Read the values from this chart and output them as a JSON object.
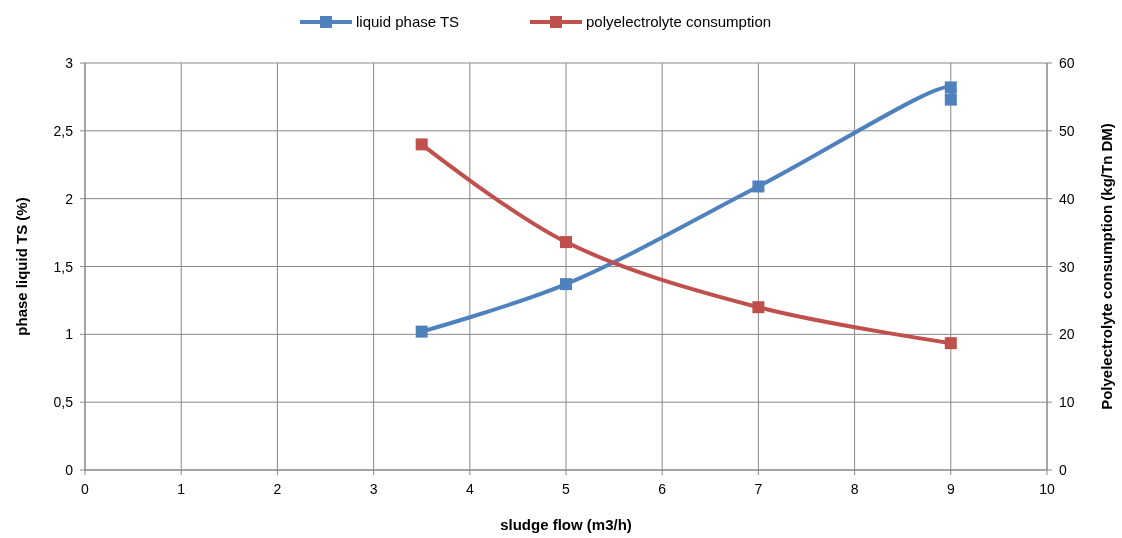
{
  "chart_data": {
    "type": "line",
    "xlabel": "sludge flow (m3/h)",
    "ylabel": "phase liquid TS (%)",
    "y2label": "Polyelectrolyte consumption (kg/Tn DM)",
    "series": [
      {
        "name": "liquid phase TS",
        "color": "#4f81bd",
        "x": [
          3.5,
          5,
          7,
          9,
          9
        ],
        "values": [
          1.02,
          1.37,
          2.09,
          2.82,
          2.73
        ]
      },
      {
        "name": "polyelectrolyte consumption",
        "color": "#c0504d",
        "x": [
          3.5,
          5,
          7,
          9
        ],
        "values": [
          48,
          33.6,
          24,
          18.7
        ],
        "axis": "y2"
      }
    ],
    "xlim": [
      0,
      10
    ],
    "xticks": [
      0,
      1,
      2,
      3,
      4,
      5,
      6,
      7,
      8,
      9,
      10
    ],
    "ylim": [
      0,
      3
    ],
    "yticks": [
      0,
      {
        "value": 0.5,
        "label": "0,5"
      },
      1,
      {
        "value": 1.5,
        "label": "1,5"
      },
      2,
      {
        "value": 2.5,
        "label": "2,5"
      },
      3
    ],
    "y2lim": [
      0,
      60
    ],
    "y2ticks": [
      0,
      10,
      20,
      30,
      40,
      50,
      60
    ],
    "grid": true,
    "legend": "top",
    "marker": "square",
    "line_style": "solid"
  }
}
